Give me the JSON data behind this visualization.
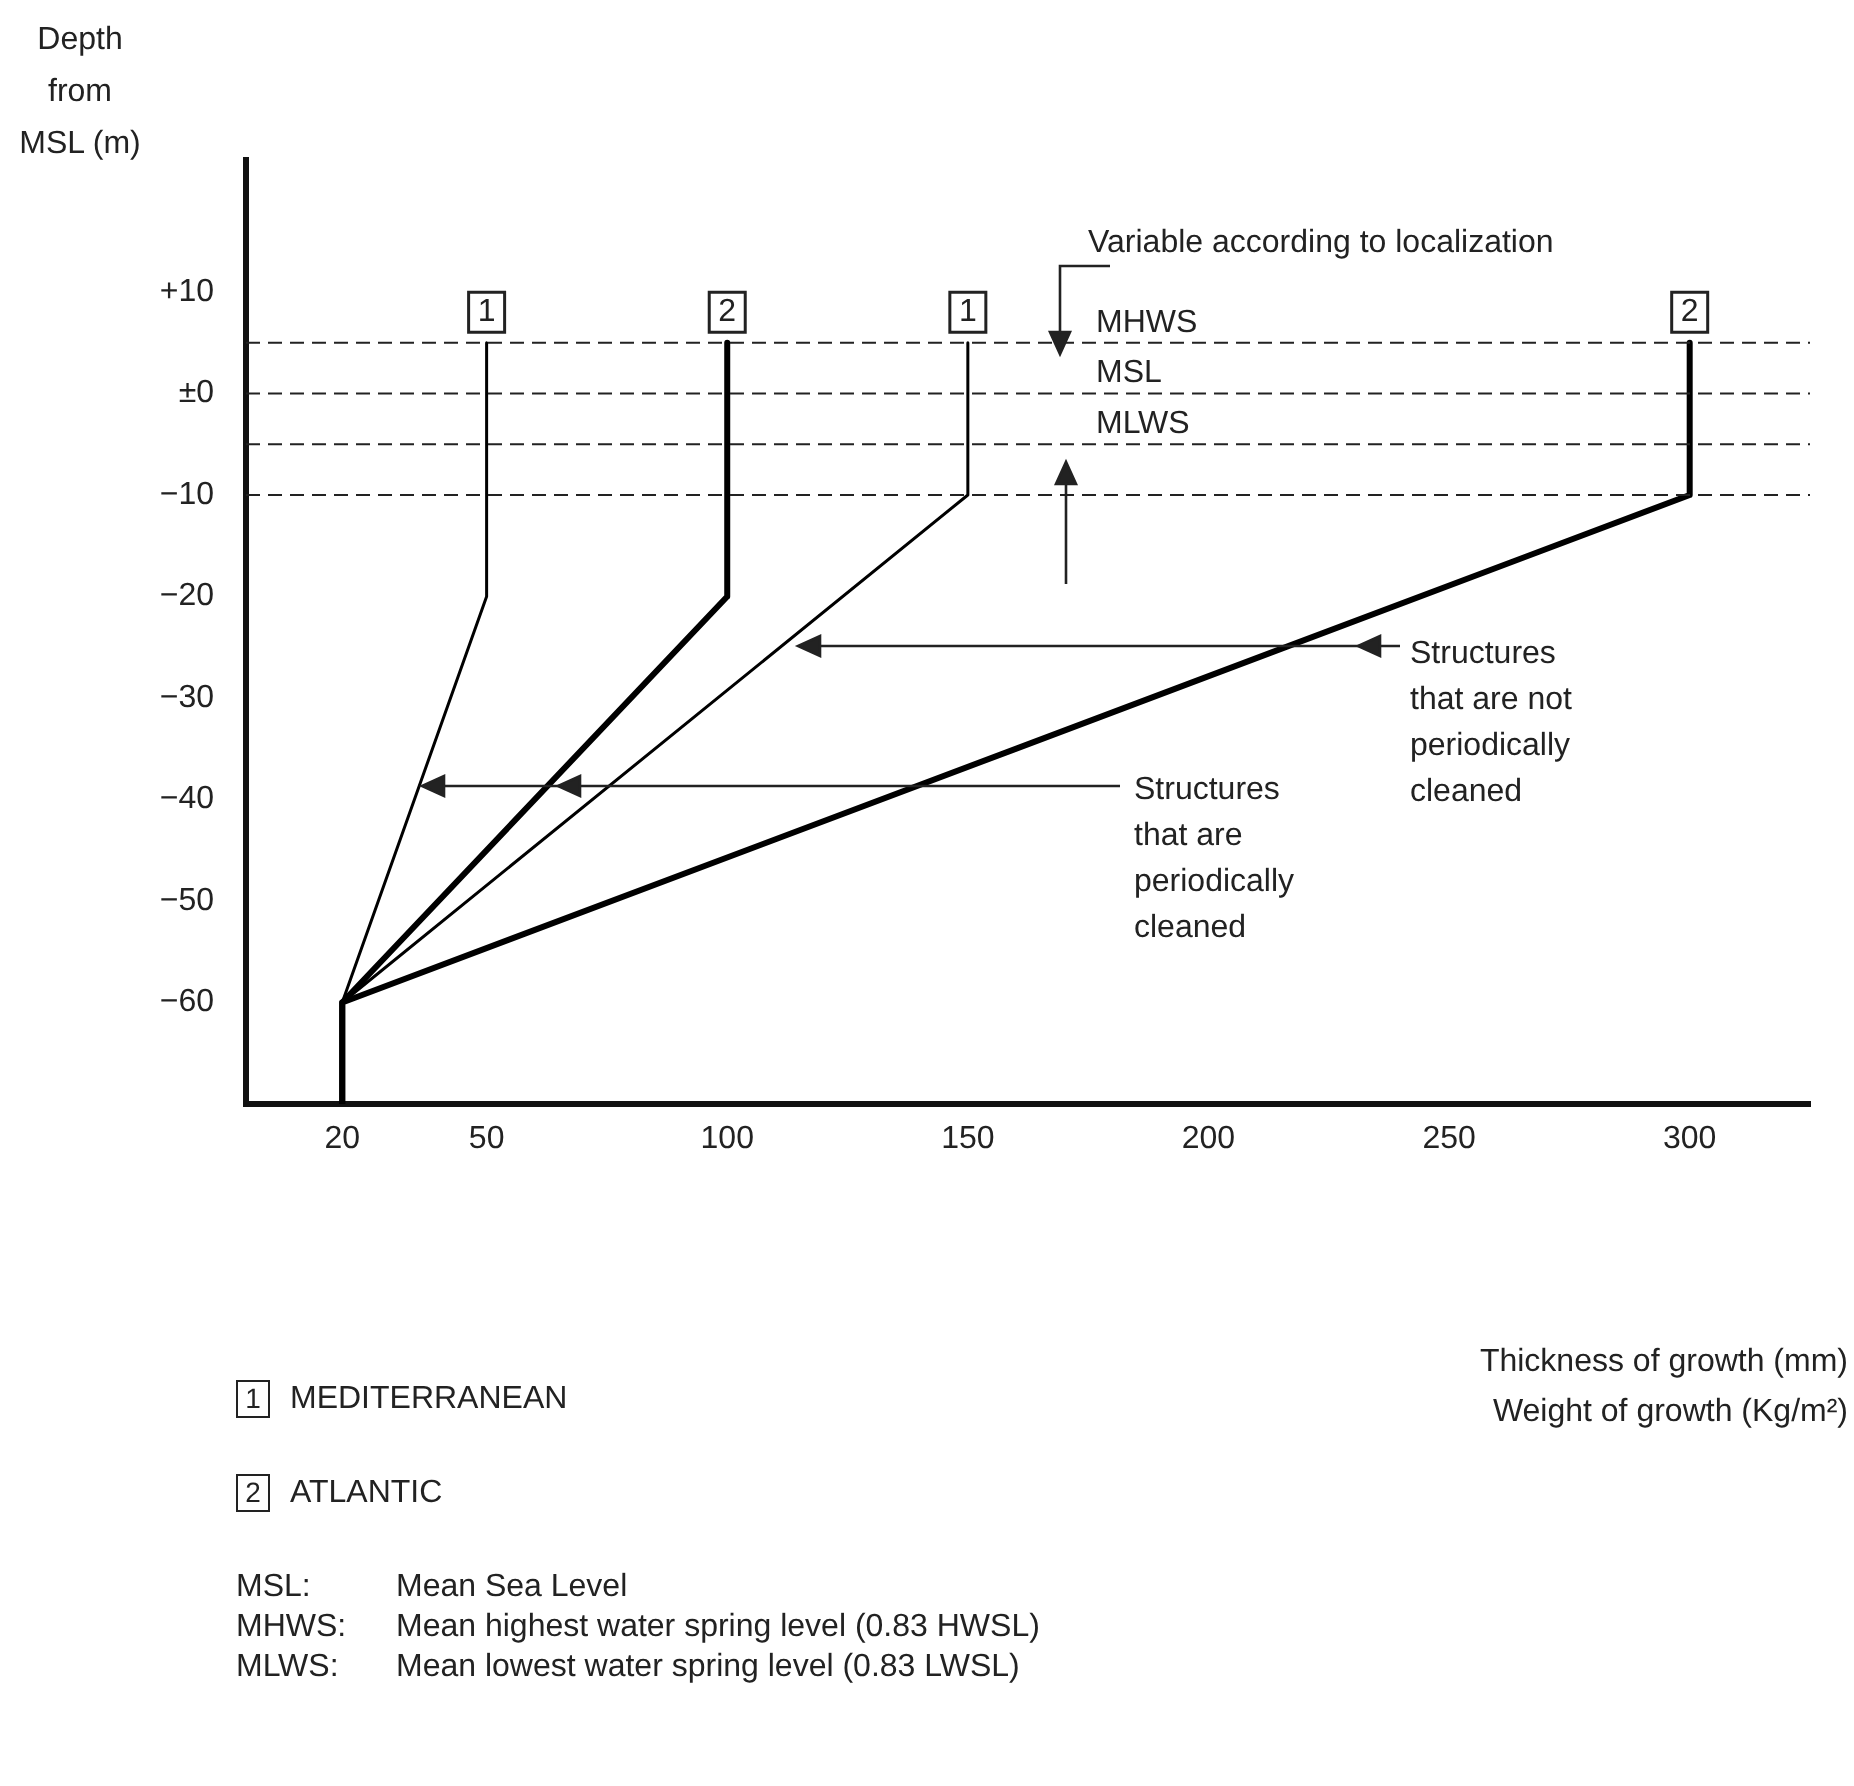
{
  "chart_data": {
    "type": "line",
    "ylabel": "Depth\nfrom\nMSL (m)",
    "series": [
      {
        "color": "#000000",
        "x": [
          50,
          50,
          20
        ],
        "values": [
          5,
          -20,
          -60
        ]
      },
      {
        "color": "#000000",
        "x": [
          100,
          100,
          20,
          20
        ],
        "values": [
          5,
          -20,
          -60,
          -70
        ]
      },
      {
        "color": "#000000",
        "x": [
          150,
          150,
          20
        ],
        "values": [
          5,
          -10,
          -60
        ]
      },
      {
        "color": "#000000",
        "x": [
          300,
          300,
          20,
          20
        ],
        "values": [
          5,
          -10,
          -60,
          -70
        ]
      }
    ],
    "xlim": [
      0,
      325
    ],
    "ylim": [
      -70,
      23
    ],
    "xticks": [
      20,
      50,
      100,
      150,
      200,
      250,
      300
    ],
    "yticks": [
      {
        "value": 10,
        "label": "+10"
      },
      {
        "value": 0,
        "label": "±0"
      },
      {
        "value": -10,
        "label": "−10"
      },
      {
        "value": -20,
        "label": "−20"
      },
      {
        "value": -30,
        "label": "−30"
      },
      {
        "value": -40,
        "label": "−40"
      },
      {
        "value": -50,
        "label": "−50"
      },
      {
        "value": -60,
        "label": "−60"
      }
    ],
    "ref_lines": [
      {
        "axis": "y",
        "value": 5,
        "label": "MHWS",
        "line_style": "dashed"
      },
      {
        "axis": "y",
        "value": 0,
        "label": "MSL",
        "line_style": "dashed"
      },
      {
        "axis": "y",
        "value": -5,
        "label": "MLWS",
        "line_style": "dashed"
      },
      {
        "axis": "y",
        "value": -10,
        "line_style": "dashed"
      }
    ],
    "annotations": [
      {
        "text": "Variable according to localization",
        "x": 170,
        "y": 5
      },
      "Structures that are not periodically cleaned",
      "Structures that are periodically cleaned",
      "Thickness of growth (mm)\nWeight of growth (Kg/m²)",
      {
        "text": "1",
        "x": 50,
        "y": 8
      },
      {
        "text": "2",
        "x": 100,
        "y": 8
      },
      {
        "text": "1",
        "x": 150,
        "y": 8
      },
      {
        "text": "2",
        "x": 300,
        "y": 8
      },
      "1 MEDITERRANEAN",
      "2 ATLANTIC",
      "MSL: Mean Sea Level",
      "MHWS: Mean highest water spring level (0.83 HWSL)",
      "MLWS: Mean lowest water spring level (0.83 LWSL)"
    ],
    "grid": false,
    "legend": false,
    "marker": "none"
  }
}
